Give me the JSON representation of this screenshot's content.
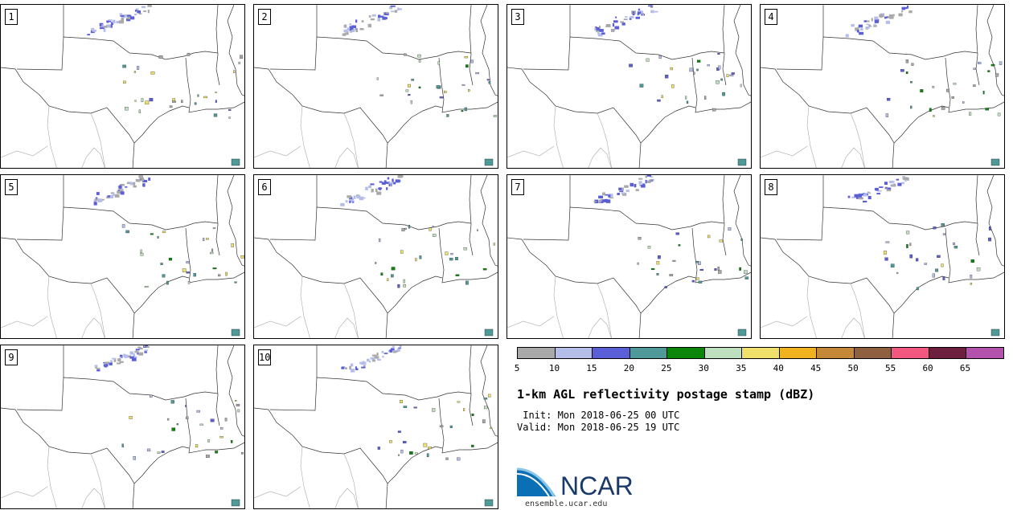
{
  "panels": [
    {
      "label": "1"
    },
    {
      "label": "2"
    },
    {
      "label": "3"
    },
    {
      "label": "4"
    },
    {
      "label": "5"
    },
    {
      "label": "6"
    },
    {
      "label": "7"
    },
    {
      "label": "8"
    },
    {
      "label": "9"
    },
    {
      "label": "10"
    }
  ],
  "colorbar": {
    "colors": [
      "#a9a9a9",
      "#b4bee8",
      "#5a5fd8",
      "#4f9999",
      "#0b860b",
      "#bfe0bf",
      "#eee06a",
      "#f0b21e",
      "#c48838",
      "#8f6040",
      "#f2577f",
      "#6d1f3d",
      "#b352ac"
    ],
    "ticks": [
      "5",
      "10",
      "15",
      "20",
      "25",
      "30",
      "35",
      "40",
      "45",
      "50",
      "55",
      "60",
      "65"
    ]
  },
  "title": "1-km AGL reflectivity postage stamp (dBZ)",
  "init_line": " Init: Mon 2018-06-25 00 UTC",
  "valid_line": "Valid: Mon 2018-06-25 19 UTC",
  "logo": {
    "text": "NCAR",
    "url": "ensemble.ucar.edu"
  }
}
